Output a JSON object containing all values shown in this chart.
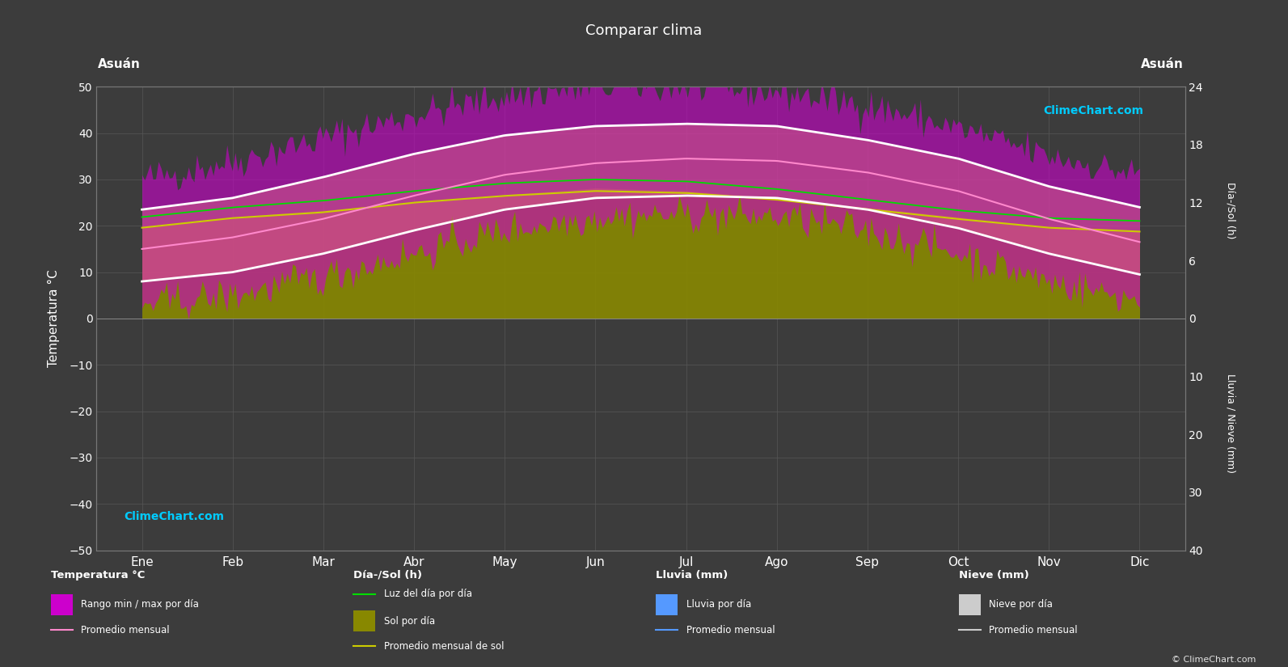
{
  "title": "Comparar clima",
  "city_left": "Asuán",
  "city_right": "Asuán",
  "months": [
    "Ene",
    "Feb",
    "Mar",
    "Abr",
    "May",
    "Jun",
    "Jul",
    "Ago",
    "Sep",
    "Oct",
    "Nov",
    "Dic"
  ],
  "temp_avg": [
    15.0,
    17.5,
    21.5,
    26.5,
    31.0,
    33.5,
    34.5,
    34.0,
    31.5,
    27.5,
    21.5,
    16.5
  ],
  "temp_max_avg": [
    23.5,
    26.0,
    30.5,
    35.5,
    39.5,
    41.5,
    42.0,
    41.5,
    38.5,
    34.5,
    28.5,
    24.0
  ],
  "temp_min_avg": [
    8.0,
    10.0,
    14.0,
    19.0,
    23.5,
    26.0,
    26.5,
    26.0,
    23.5,
    19.5,
    14.0,
    9.5
  ],
  "temp_max_daily_high": [
    30.0,
    34.0,
    39.0,
    44.0,
    48.0,
    50.0,
    50.0,
    49.0,
    46.0,
    41.0,
    35.0,
    31.0
  ],
  "temp_min_daily_low": [
    3.0,
    5.0,
    9.0,
    14.0,
    19.0,
    22.0,
    22.5,
    22.0,
    19.0,
    14.0,
    8.0,
    4.0
  ],
  "daylight_hours": [
    10.5,
    11.5,
    12.2,
    13.2,
    14.0,
    14.4,
    14.2,
    13.4,
    12.3,
    11.2,
    10.4,
    10.1
  ],
  "sunshine_hours": [
    9.5,
    10.5,
    11.2,
    12.0,
    12.8,
    13.5,
    13.2,
    12.5,
    11.5,
    10.5,
    9.5,
    9.0
  ],
  "sunshine_monthly_avg": [
    9.4,
    10.4,
    11.0,
    12.0,
    12.7,
    13.2,
    13.0,
    12.3,
    11.3,
    10.3,
    9.4,
    9.0
  ],
  "background_color": "#3c3c3c",
  "plot_bg_color": "#3c3c3c",
  "grid_color": "#555555",
  "text_color": "#ffffff",
  "ylim_left": [
    -50,
    50
  ],
  "ylabel_left": "Temperatura °C",
  "ylabel_right1": "Día-/Sol (h)",
  "ylabel_right2": "Lluvia / Nieve (mm)"
}
